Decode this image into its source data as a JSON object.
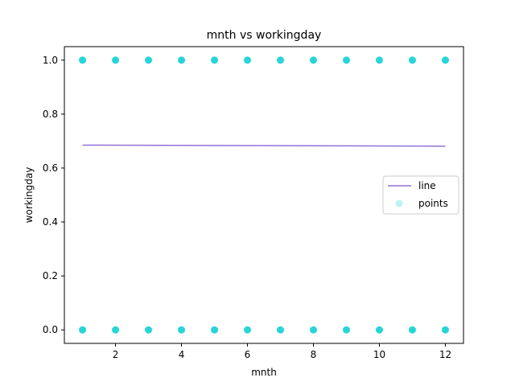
{
  "chart_data": {
    "type": "scatter",
    "title": "mnth vs workingday",
    "xlabel": "mnth",
    "ylabel": "workingday",
    "xlim": [
      0.45,
      12.55
    ],
    "ylim": [
      -0.05,
      1.05
    ],
    "xticks": [
      2,
      4,
      6,
      8,
      10,
      12
    ],
    "yticks": [
      0.0,
      0.2,
      0.4,
      0.6,
      0.8,
      1.0
    ],
    "xtick_labels": [
      "2",
      "4",
      "6",
      "8",
      "10",
      "12"
    ],
    "ytick_labels": [
      "0.0",
      "0.2",
      "0.4",
      "0.6",
      "0.8",
      "1.0"
    ],
    "grid": false,
    "legend_position": "center-right",
    "series": [
      {
        "name": "line",
        "kind": "line",
        "color": "#9370DB",
        "x": [
          1,
          12
        ],
        "y": [
          0.685,
          0.681
        ]
      },
      {
        "name": "points",
        "kind": "scatter",
        "color": "#00CED1",
        "x": [
          1,
          1,
          2,
          2,
          3,
          3,
          4,
          4,
          5,
          5,
          6,
          6,
          7,
          7,
          8,
          8,
          9,
          9,
          10,
          10,
          11,
          11,
          12,
          12
        ],
        "y": [
          0,
          1,
          0,
          1,
          0,
          1,
          0,
          1,
          0,
          1,
          0,
          1,
          0,
          1,
          0,
          1,
          0,
          1,
          0,
          1,
          0,
          1,
          0,
          1
        ]
      }
    ]
  }
}
